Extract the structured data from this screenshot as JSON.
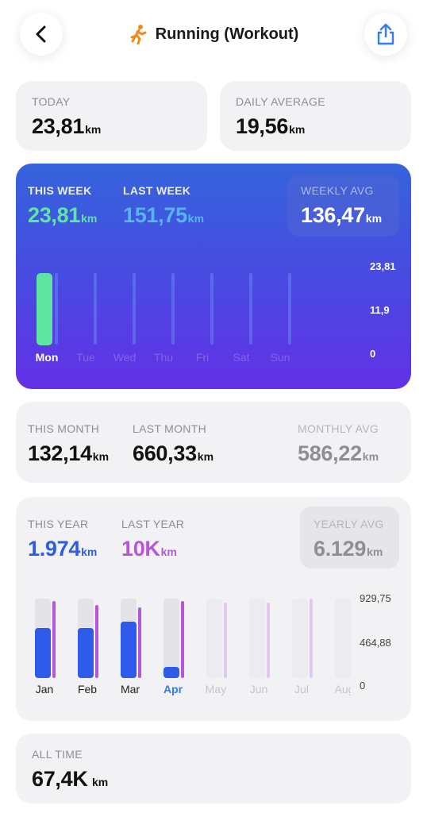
{
  "header": {
    "back_icon": "chevron-left-icon",
    "title": "Running (Workout)",
    "title_icon": "running-person-icon",
    "share_icon": "share-icon"
  },
  "today": {
    "label": "TODAY",
    "value": "23,81",
    "unit": "km"
  },
  "daily_average": {
    "label": "DAILY AVERAGE",
    "value": "19,56",
    "unit": "km"
  },
  "week": {
    "this_label": "THIS WEEK",
    "this_value": "23,81",
    "this_unit": "km",
    "last_label": "LAST WEEK",
    "last_value": "151,75",
    "last_unit": "km",
    "avg_label": "WEEKLY AVG",
    "avg_value": "136,47",
    "avg_unit": "km",
    "colors": {
      "this": "#5ee6a0",
      "last": "#56b4f0"
    }
  },
  "month": {
    "this_label": "THIS MONTH",
    "this_value": "132,14",
    "this_unit": "km",
    "last_label": "LAST MONTH",
    "last_value": "660,33",
    "last_unit": "km",
    "avg_label": "MONTHLY AVG",
    "avg_value": "586,22",
    "avg_unit": "km"
  },
  "year": {
    "this_label": "THIS YEAR",
    "this_value": "1.974",
    "this_unit": "km",
    "last_label": "LAST YEAR",
    "last_value": "10K",
    "last_unit": "km",
    "avg_label": "YEARLY AVG",
    "avg_value": "6.129",
    "avg_unit": "km",
    "colors": {
      "this": "#2f5bea",
      "last": "#b557d8"
    }
  },
  "all_time": {
    "label": "ALL TIME",
    "value": "67,4K",
    "unit": "km"
  },
  "chart_data": [
    {
      "type": "bar",
      "categories": [
        "Mon",
        "Tue",
        "Wed",
        "Thu",
        "Fri",
        "Sat",
        "Sun"
      ],
      "selected": "Mon",
      "series": [
        {
          "values": [
            23.81,
            0,
            0,
            0,
            0,
            0,
            0
          ]
        }
      ],
      "yticks": [
        "23,81",
        "11,9",
        "0"
      ],
      "ylim": [
        0,
        23.81
      ]
    },
    {
      "type": "bar",
      "categories": [
        "Jan",
        "Feb",
        "Mar",
        "Apr",
        "May",
        "Jun",
        "Jul",
        "Aug"
      ],
      "selected": "Apr",
      "series": [
        {
          "values": [
            590,
            590,
            660,
            132,
            0,
            0,
            0,
            0
          ]
        },
        {
          "values": [
            900,
            860,
            830,
            900,
            880,
            880,
            930,
            0
          ]
        }
      ],
      "yticks": [
        "929,75",
        "464,88",
        "0"
      ],
      "ylim": [
        0,
        929.75
      ]
    }
  ]
}
